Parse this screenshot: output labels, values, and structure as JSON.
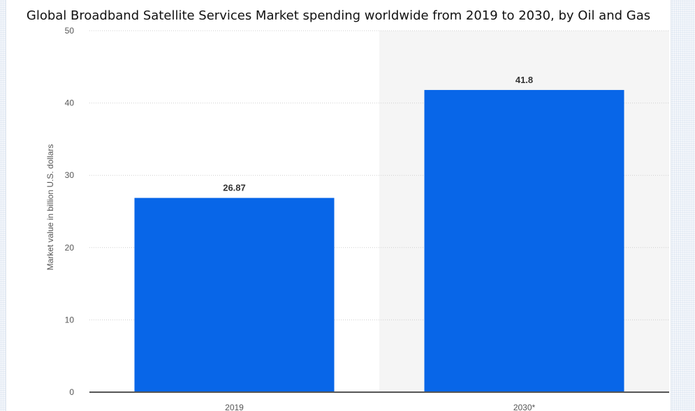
{
  "chart_data": {
    "type": "bar",
    "title": "Global Broadband Satellite Services Market spending worldwide from 2019 to 2030, by Oil and Gas",
    "xlabel": "",
    "ylabel": "Market value in billion U.S. dollars",
    "categories": [
      "2019",
      "2030*"
    ],
    "values": [
      26.87,
      41.8
    ],
    "data_labels": [
      "26.87",
      "41.8"
    ],
    "ylim": [
      0,
      50
    ],
    "yticks": [
      0,
      10,
      20,
      30,
      40,
      50
    ],
    "grid": true,
    "forecast_shading_from_category": "2030*",
    "colors": {
      "bar": "#0866e8",
      "grid": "#cfcfcf",
      "axis": "#555555",
      "forecast_bg": "#f5f5f5",
      "tick_text": "#555555",
      "label_text": "#333333"
    }
  }
}
